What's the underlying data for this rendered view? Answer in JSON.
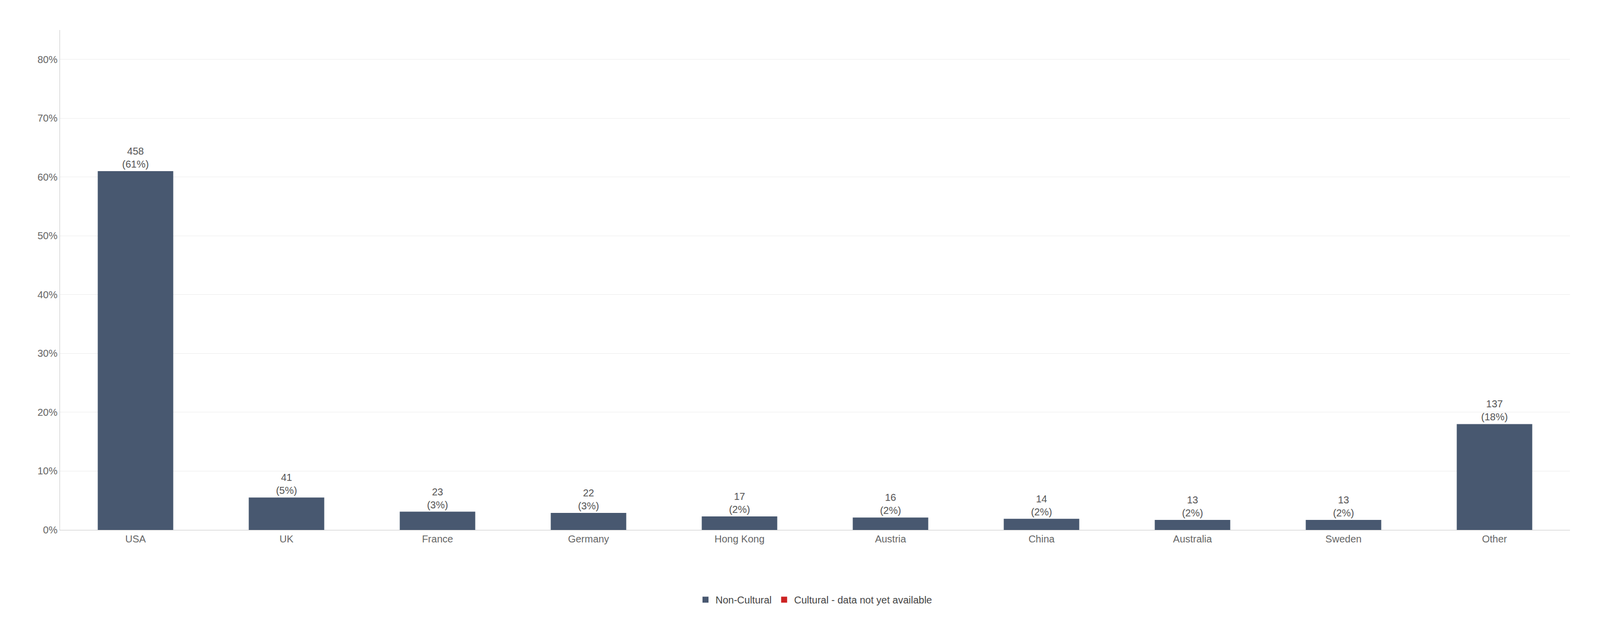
{
  "chart_data": {
    "type": "bar",
    "categories": [
      "USA",
      "UK",
      "France",
      "Germany",
      "Hong Kong",
      "Austria",
      "China",
      "Australia",
      "Sweden",
      "Other"
    ],
    "series": [
      {
        "name": "Non-Cultural",
        "color": "#485870",
        "values": [
          0.61,
          0.055,
          0.031,
          0.029,
          0.023,
          0.021,
          0.019,
          0.017,
          0.017,
          0.18
        ],
        "value_labels": [
          "458\n(61%)",
          "41\n(5%)",
          "23\n(3%)",
          "22\n(3%)",
          "17\n(2%)",
          "16\n(2%)",
          "14\n(2%)",
          "13\n(2%)",
          "13\n(2%)",
          "137\n(18%)"
        ]
      },
      {
        "name": "Cultural - data not yet available",
        "color": "#cc2222",
        "values": [
          null,
          null,
          null,
          null,
          null,
          null,
          null,
          null,
          null,
          null
        ]
      }
    ],
    "ylim": [
      0,
      0.85
    ],
    "yticks": [
      {
        "value": 0.0,
        "label": "0%"
      },
      {
        "value": 0.1,
        "label": "10%"
      },
      {
        "value": 0.2,
        "label": "20%"
      },
      {
        "value": 0.3,
        "label": "30%"
      },
      {
        "value": 0.4,
        "label": "40%"
      },
      {
        "value": 0.5,
        "label": "50%"
      },
      {
        "value": 0.6,
        "label": "60%"
      },
      {
        "value": 0.7,
        "label": "70%"
      },
      {
        "value": 0.8,
        "label": "80%"
      }
    ],
    "grid": true,
    "legend": "bottom"
  }
}
